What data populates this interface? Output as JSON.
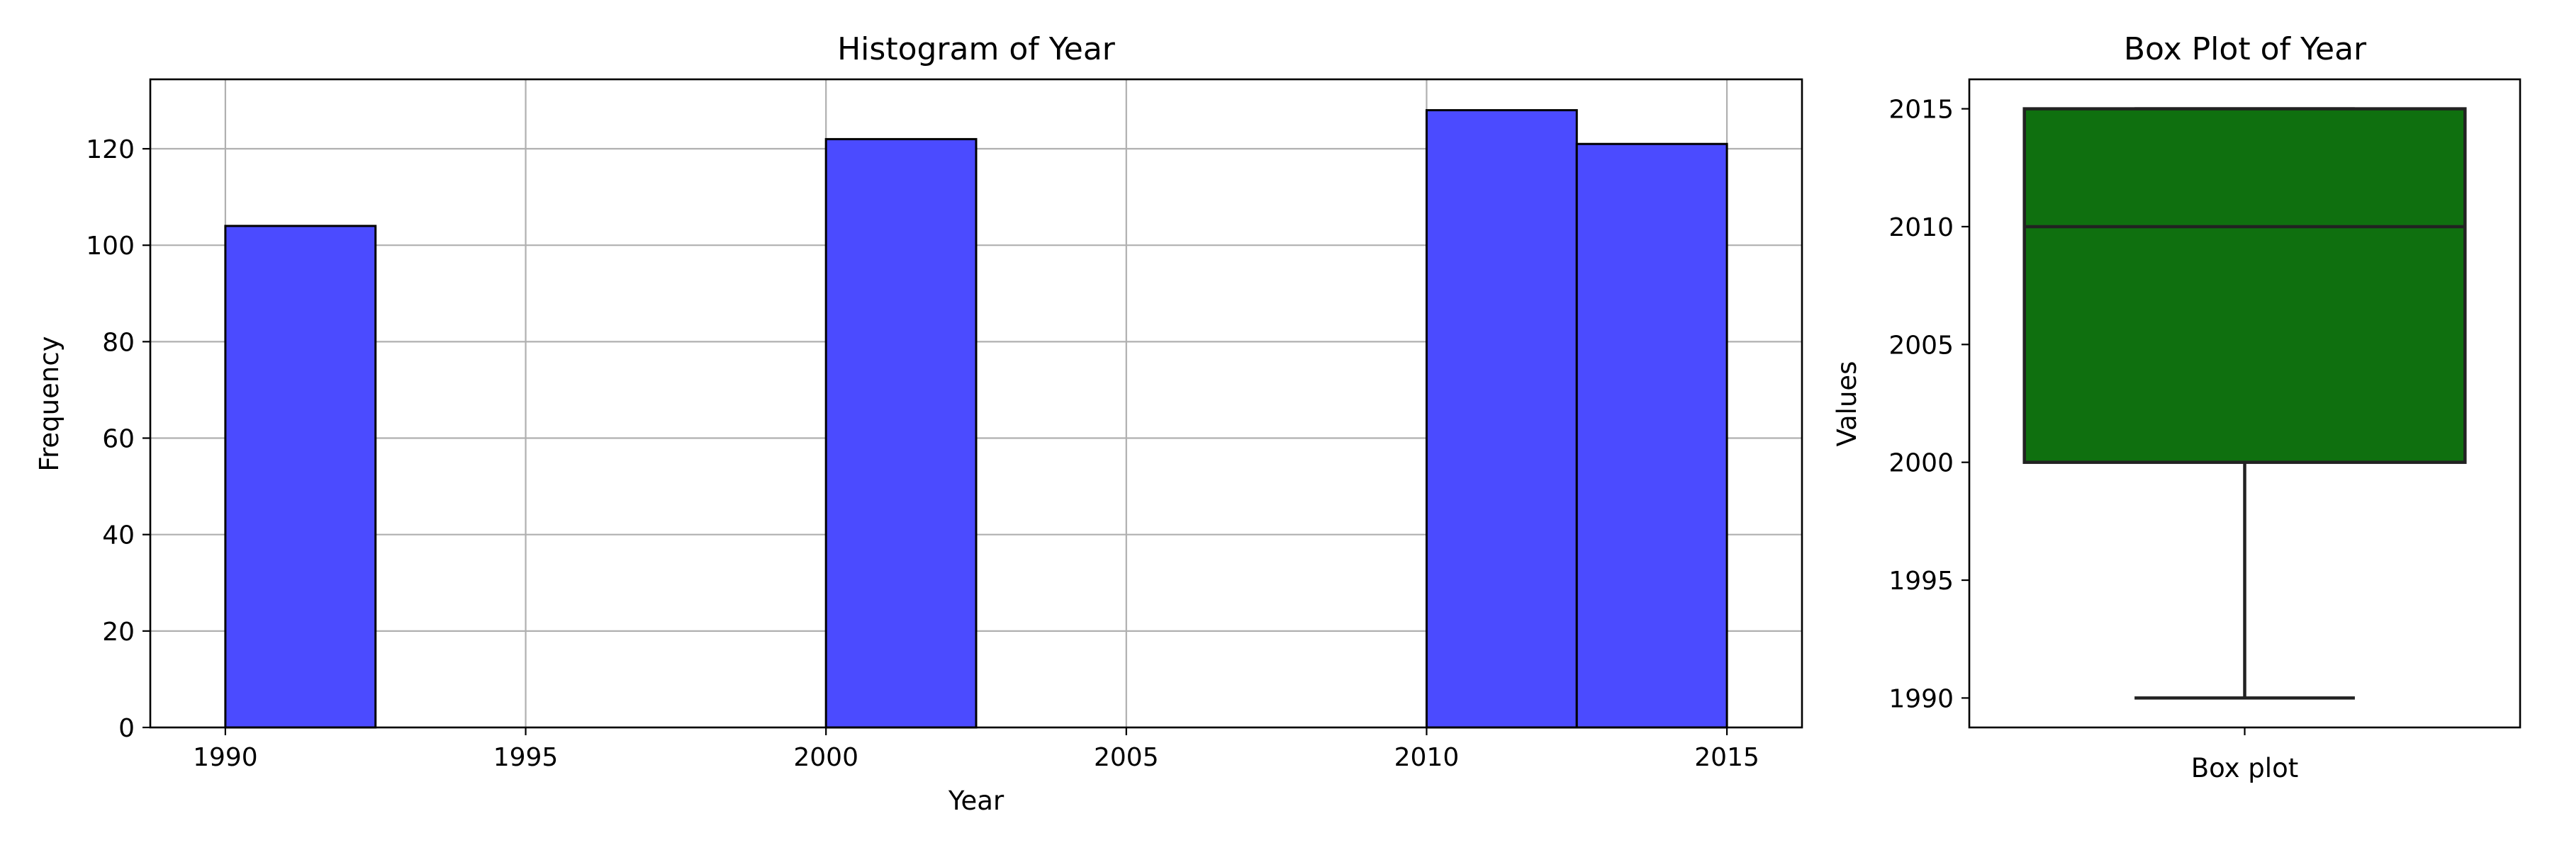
{
  "chart_data": [
    {
      "type": "bar",
      "subtype": "histogram",
      "title": "Histogram of Year",
      "xlabel": "Year",
      "ylabel": "Frequency",
      "bins": [
        {
          "start": 1990,
          "end": 1992.5,
          "count": 104
        },
        {
          "start": 1992.5,
          "end": 1995,
          "count": 0
        },
        {
          "start": 1995,
          "end": 1997.5,
          "count": 0
        },
        {
          "start": 1997.5,
          "end": 2000,
          "count": 0
        },
        {
          "start": 2000,
          "end": 2002.5,
          "count": 122
        },
        {
          "start": 2002.5,
          "end": 2005,
          "count": 0
        },
        {
          "start": 2005,
          "end": 2007.5,
          "count": 0
        },
        {
          "start": 2007.5,
          "end": 2010,
          "count": 0
        },
        {
          "start": 2010,
          "end": 2012.5,
          "count": 128
        },
        {
          "start": 2012.5,
          "end": 2015,
          "count": 121
        }
      ],
      "xlim": [
        1988.75,
        2016.25
      ],
      "ylim": [
        0,
        134.4
      ],
      "x_ticks": [
        "1990",
        "1995",
        "2000",
        "2005",
        "2010",
        "2015"
      ],
      "x_tick_values": [
        1990,
        1995,
        2000,
        2005,
        2010,
        2015
      ],
      "y_ticks": [
        "0",
        "20",
        "40",
        "60",
        "80",
        "100",
        "120"
      ],
      "y_tick_values": [
        0,
        20,
        40,
        60,
        80,
        100,
        120
      ],
      "grid": true,
      "bar_color": "#4b4bff",
      "edge_color": "#000000"
    },
    {
      "type": "box",
      "title": "Box Plot of Year",
      "ylabel": "Values",
      "category": "Box plot",
      "stats": {
        "min": 1990,
        "q1": 2000,
        "median": 2010,
        "q3": 2015,
        "max": 2015
      },
      "ylim": [
        1988.75,
        2016.25
      ],
      "y_ticks": [
        "1990",
        "1995",
        "2000",
        "2005",
        "2010",
        "2015"
      ],
      "y_tick_values": [
        1990,
        1995,
        2000,
        2005,
        2010,
        2015
      ],
      "grid": false,
      "box_color": "#0f700f",
      "line_color": "#222222"
    }
  ]
}
